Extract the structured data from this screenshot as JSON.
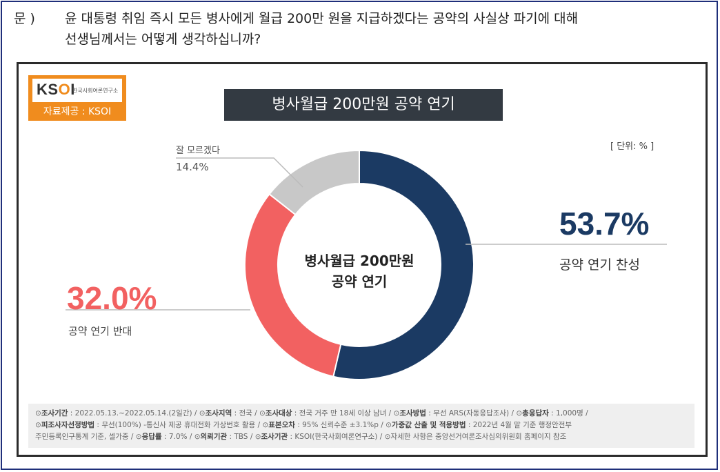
{
  "question": {
    "prefix": "문 )",
    "line1": "윤 대통령 취임 즉시 모든 병사에게 월급 200만 원을 지급하겠다는 공약의 사실상 파기에 대해",
    "line2": "선생님께서는 어떻게 생각하십니까?"
  },
  "logo": {
    "wordmark_a": "KS",
    "wordmark_b": "O",
    "wordmark_c": "I",
    "org": "한국사회여론연구소",
    "source": "자료제공 : KSOI"
  },
  "colors": {
    "favor": "#1b3a63",
    "oppose": "#f26161",
    "unknown": "#c8c8c8",
    "title_bg": "#333a42",
    "logo_orange": "#f08c1e"
  },
  "chart_data": {
    "type": "pie",
    "title": "병사월급 200만원 공약 연기",
    "center_label_line1": "병사월급 200만원",
    "center_label_line2": "공약 연기",
    "unit": "[ 단위: % ]",
    "slices": [
      {
        "name": "공약 연기 찬성",
        "value": 53.7,
        "value_text": "53.7%",
        "color": "#1b3a63"
      },
      {
        "name": "공약 연기 반대",
        "value": 32.0,
        "value_text": "32.0%",
        "color": "#f26161"
      },
      {
        "name": "잘 모르겠다",
        "value": 14.4,
        "value_text": "14.4%",
        "color": "#c8c8c8"
      }
    ]
  },
  "footer": {
    "r1_k1": "조사기간",
    "r1_v1": "2022.05.13.~2022.05.14.(2일간)",
    "r1_k2": "조사지역",
    "r1_v2": "전국",
    "r1_k3": "조사대상",
    "r1_v3": "전국 거주 만 18세 이상 남녀",
    "r1_k4": "조사방법",
    "r1_v4": "무선 ARS(자동응답조사)",
    "r1_k5": "총응답자",
    "r1_v5": "1,000명",
    "r2_k1": "피조사자선정방법",
    "r2_v1": "무선(100%) -통신사 제공 휴대전화 가상번호 활용",
    "r2_k2": "표본오차",
    "r2_v2": "95% 신뢰수준 ±3.1%p",
    "r2_k3": "가중값 산출 및 적용방법",
    "r2_v3": "2022년 4월 말 기준 행정안전부",
    "r3_v0": "주민등록인구통계 기준, 셀가중",
    "r3_k1": "응답률",
    "r3_v1": "7.0%",
    "r3_k2": "의뢰기관",
    "r3_v2": "TBS",
    "r3_k3": "조사기관",
    "r3_v3": "KSOI(한국사회여론연구소)",
    "r3_v4": "자세한 사항은 중앙선거여론조사심의위원회 홈페이지 참조"
  }
}
